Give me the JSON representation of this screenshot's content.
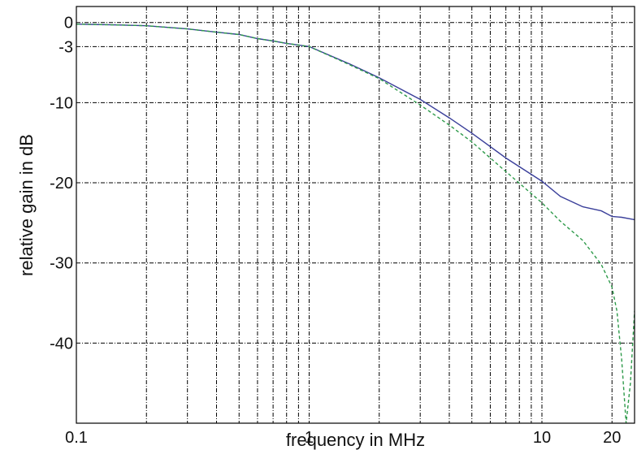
{
  "chart_data": {
    "type": "line",
    "title": "",
    "xlabel": "frequency in MHz",
    "ylabel": "relative gain in dB",
    "xscale": "log",
    "xlim": [
      0.1,
      25
    ],
    "ylim": [
      -50,
      2
    ],
    "x_ticks": [
      0.1,
      1,
      10,
      20
    ],
    "x_tick_labels": [
      "0.1",
      "1",
      "10",
      "20"
    ],
    "y_ticks": [
      0,
      -3,
      -10,
      -20,
      -30,
      -40
    ],
    "y_tick_labels": [
      "0",
      "-3",
      "-10",
      "-20",
      "-30",
      "-40"
    ],
    "x_minor_grid": [
      0.2,
      0.3,
      0.4,
      0.5,
      0.6,
      0.7,
      0.8,
      0.9,
      2,
      3,
      4,
      5,
      6,
      7,
      8,
      9
    ],
    "grid": true,
    "legend": "none",
    "series": [
      {
        "color": "#3a3f9a",
        "style": "solid",
        "x": [
          0.1,
          0.15,
          0.2,
          0.3,
          0.4,
          0.5,
          0.6,
          0.7,
          0.8,
          1,
          1.5,
          2,
          3,
          4,
          5,
          7,
          10,
          12,
          15,
          18,
          20,
          22,
          25
        ],
        "y": [
          -0.2,
          -0.3,
          -0.4,
          -0.8,
          -1.2,
          -1.5,
          -2.0,
          -2.3,
          -2.6,
          -3.0,
          -5.2,
          -6.9,
          -9.6,
          -11.9,
          -13.8,
          -16.9,
          -19.8,
          -21.7,
          -23.0,
          -23.5,
          -24.2,
          -24.3,
          -24.6
        ]
      },
      {
        "color": "#2e9a4a",
        "style": "dashed",
        "x": [
          0.1,
          0.15,
          0.2,
          0.3,
          0.4,
          0.5,
          0.6,
          0.7,
          0.8,
          1,
          1.5,
          2,
          3,
          4,
          5,
          7,
          10,
          12,
          15,
          18,
          20,
          21,
          22,
          23,
          24,
          25
        ],
        "y": [
          -0.2,
          -0.3,
          -0.4,
          -0.8,
          -1.2,
          -1.5,
          -2.0,
          -2.3,
          -2.6,
          -3.0,
          -5.3,
          -7.0,
          -10.3,
          -12.8,
          -14.9,
          -18.6,
          -22.5,
          -24.8,
          -27.2,
          -30.2,
          -33.0,
          -36.0,
          -42.0,
          -50.0,
          -45.0,
          -36.0
        ]
      }
    ]
  }
}
